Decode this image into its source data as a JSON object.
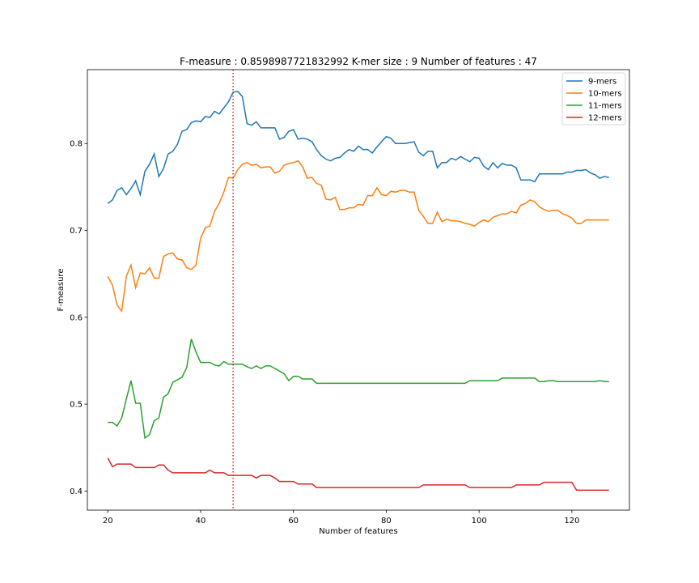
{
  "chart_data": {
    "type": "line",
    "title": "F-measure : 0.8598987721832992 K-mer size : 9 Number of features : 47",
    "xlabel": "Number of features",
    "ylabel": "F-measure",
    "xlim": [
      15.6,
      132.4
    ],
    "ylim": [
      0.378,
      0.885
    ],
    "xticks": [
      20,
      40,
      60,
      80,
      100,
      120
    ],
    "yticks": [
      0.4,
      0.5,
      0.6,
      0.7,
      0.8
    ],
    "xtick_labels": [
      "20",
      "40",
      "60",
      "80",
      "100",
      "120"
    ],
    "ytick_labels": [
      "0.4",
      "0.5",
      "0.6",
      "0.7",
      "0.8"
    ],
    "legend_position": "top-right",
    "vline": {
      "x": 47,
      "color": "#d62728",
      "style": "dotted"
    },
    "grid": false,
    "x_start": 20,
    "x_step": 1,
    "series": [
      {
        "name": "9-mers",
        "color": "#1f77b4",
        "values": [
          0.731,
          0.735,
          0.746,
          0.749,
          0.741,
          0.748,
          0.757,
          0.741,
          0.768,
          0.776,
          0.788,
          0.762,
          0.771,
          0.788,
          0.791,
          0.799,
          0.814,
          0.816,
          0.824,
          0.826,
          0.825,
          0.831,
          0.83,
          0.837,
          0.834,
          0.841,
          0.848,
          0.859,
          0.86,
          0.854,
          0.823,
          0.821,
          0.825,
          0.818,
          0.818,
          0.818,
          0.818,
          0.805,
          0.807,
          0.814,
          0.816,
          0.805,
          0.806,
          0.805,
          0.802,
          0.793,
          0.786,
          0.782,
          0.78,
          0.783,
          0.784,
          0.789,
          0.793,
          0.791,
          0.797,
          0.793,
          0.793,
          0.789,
          0.796,
          0.802,
          0.808,
          0.806,
          0.8,
          0.8,
          0.8,
          0.801,
          0.802,
          0.79,
          0.786,
          0.791,
          0.791,
          0.772,
          0.778,
          0.778,
          0.783,
          0.781,
          0.785,
          0.782,
          0.779,
          0.784,
          0.783,
          0.774,
          0.77,
          0.778,
          0.772,
          0.777,
          0.775,
          0.775,
          0.772,
          0.758,
          0.758,
          0.758,
          0.756,
          0.765,
          0.765,
          0.765,
          0.765,
          0.765,
          0.765,
          0.767,
          0.767,
          0.769,
          0.769,
          0.77,
          0.766,
          0.764,
          0.76,
          0.762,
          0.761
        ]
      },
      {
        "name": "10-mers",
        "color": "#ff7f0e",
        "values": [
          0.647,
          0.637,
          0.614,
          0.607,
          0.647,
          0.66,
          0.634,
          0.651,
          0.65,
          0.657,
          0.645,
          0.645,
          0.67,
          0.673,
          0.674,
          0.667,
          0.666,
          0.657,
          0.655,
          0.66,
          0.691,
          0.703,
          0.705,
          0.722,
          0.731,
          0.744,
          0.761,
          0.76,
          0.77,
          0.776,
          0.778,
          0.775,
          0.776,
          0.772,
          0.773,
          0.773,
          0.766,
          0.768,
          0.775,
          0.777,
          0.778,
          0.78,
          0.773,
          0.76,
          0.761,
          0.754,
          0.752,
          0.736,
          0.735,
          0.738,
          0.724,
          0.724,
          0.726,
          0.726,
          0.73,
          0.729,
          0.74,
          0.74,
          0.749,
          0.741,
          0.74,
          0.745,
          0.744,
          0.746,
          0.746,
          0.744,
          0.744,
          0.723,
          0.716,
          0.708,
          0.708,
          0.721,
          0.71,
          0.713,
          0.711,
          0.711,
          0.71,
          0.708,
          0.707,
          0.705,
          0.709,
          0.712,
          0.71,
          0.715,
          0.717,
          0.719,
          0.719,
          0.722,
          0.72,
          0.729,
          0.731,
          0.735,
          0.733,
          0.727,
          0.724,
          0.722,
          0.723,
          0.723,
          0.719,
          0.717,
          0.714,
          0.708,
          0.708,
          0.712,
          0.712,
          0.712,
          0.712,
          0.712,
          0.712
        ]
      },
      {
        "name": "11-mers",
        "color": "#2ca02c",
        "values": [
          0.479,
          0.479,
          0.475,
          0.484,
          0.506,
          0.527,
          0.501,
          0.501,
          0.461,
          0.465,
          0.481,
          0.484,
          0.508,
          0.512,
          0.525,
          0.528,
          0.531,
          0.542,
          0.575,
          0.56,
          0.548,
          0.548,
          0.548,
          0.545,
          0.544,
          0.549,
          0.546,
          0.546,
          0.546,
          0.546,
          0.543,
          0.541,
          0.544,
          0.541,
          0.544,
          0.544,
          0.541,
          0.538,
          0.535,
          0.527,
          0.532,
          0.532,
          0.529,
          0.529,
          0.529,
          0.524,
          0.524,
          0.524,
          0.524,
          0.524,
          0.524,
          0.524,
          0.524,
          0.524,
          0.524,
          0.524,
          0.524,
          0.524,
          0.524,
          0.524,
          0.524,
          0.524,
          0.524,
          0.524,
          0.524,
          0.524,
          0.524,
          0.524,
          0.524,
          0.524,
          0.524,
          0.524,
          0.524,
          0.524,
          0.524,
          0.524,
          0.524,
          0.524,
          0.527,
          0.527,
          0.527,
          0.527,
          0.527,
          0.527,
          0.527,
          0.53,
          0.53,
          0.53,
          0.53,
          0.53,
          0.53,
          0.53,
          0.53,
          0.526,
          0.526,
          0.527,
          0.527,
          0.526,
          0.526,
          0.526,
          0.526,
          0.526,
          0.526,
          0.526,
          0.526,
          0.526,
          0.527,
          0.526,
          0.526
        ]
      },
      {
        "name": "12-mers",
        "color": "#d62728",
        "values": [
          0.438,
          0.428,
          0.431,
          0.431,
          0.431,
          0.431,
          0.427,
          0.427,
          0.427,
          0.427,
          0.427,
          0.43,
          0.43,
          0.424,
          0.421,
          0.421,
          0.421,
          0.421,
          0.421,
          0.421,
          0.421,
          0.421,
          0.424,
          0.421,
          0.421,
          0.421,
          0.418,
          0.418,
          0.418,
          0.418,
          0.418,
          0.418,
          0.415,
          0.418,
          0.418,
          0.418,
          0.415,
          0.411,
          0.411,
          0.411,
          0.411,
          0.408,
          0.408,
          0.408,
          0.408,
          0.404,
          0.404,
          0.404,
          0.404,
          0.404,
          0.404,
          0.404,
          0.404,
          0.404,
          0.404,
          0.404,
          0.404,
          0.404,
          0.404,
          0.404,
          0.404,
          0.404,
          0.404,
          0.404,
          0.404,
          0.404,
          0.404,
          0.404,
          0.407,
          0.407,
          0.407,
          0.407,
          0.407,
          0.407,
          0.407,
          0.407,
          0.407,
          0.407,
          0.404,
          0.404,
          0.404,
          0.404,
          0.404,
          0.404,
          0.404,
          0.404,
          0.404,
          0.404,
          0.407,
          0.407,
          0.407,
          0.407,
          0.407,
          0.407,
          0.41,
          0.41,
          0.41,
          0.41,
          0.41,
          0.41,
          0.41,
          0.401,
          0.401,
          0.401,
          0.401,
          0.401,
          0.401,
          0.401,
          0.401
        ]
      }
    ]
  }
}
